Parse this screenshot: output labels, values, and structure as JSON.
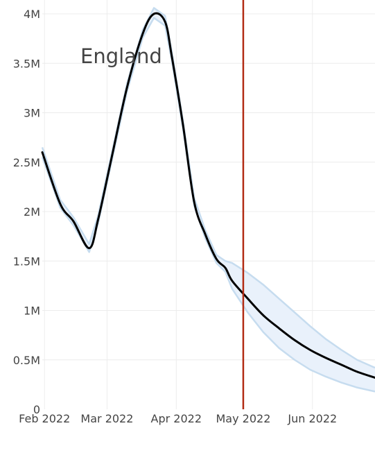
{
  "chart_data": {
    "type": "line",
    "title": "England",
    "xlabel": "",
    "ylabel": "",
    "x": [
      "2022-01-31",
      "2022-02-08",
      "2022-02-14",
      "2022-02-21",
      "2022-02-25",
      "2022-03-03",
      "2022-03-10",
      "2022-03-17",
      "2022-03-22",
      "2022-03-27",
      "2022-03-30",
      "2022-04-04",
      "2022-04-09",
      "2022-04-14",
      "2022-04-19",
      "2022-04-23",
      "2022-04-26",
      "2022-05-03",
      "2022-05-10",
      "2022-05-17",
      "2022-05-24",
      "2022-05-31",
      "2022-06-07",
      "2022-06-14",
      "2022-06-21",
      "2022-06-29"
    ],
    "series": [
      {
        "values": [
          2.6,
          2.08,
          1.9,
          1.63,
          1.92,
          2.54,
          3.26,
          3.8,
          4.0,
          3.92,
          3.57,
          2.88,
          2.1,
          1.77,
          1.52,
          1.43,
          1.3,
          1.12,
          0.95,
          0.82,
          0.7,
          0.6,
          0.52,
          0.45,
          0.38,
          0.32
        ],
        "lower": [
          2.55,
          2.04,
          1.86,
          1.59,
          1.88,
          2.5,
          3.22,
          3.76,
          3.96,
          3.88,
          3.53,
          2.84,
          2.06,
          1.73,
          1.48,
          1.39,
          1.22,
          0.98,
          0.78,
          0.62,
          0.5,
          0.4,
          0.33,
          0.27,
          0.22,
          0.18
        ],
        "upper": [
          2.65,
          2.12,
          1.94,
          1.67,
          1.96,
          2.58,
          3.3,
          3.84,
          4.06,
          3.98,
          3.62,
          2.92,
          2.14,
          1.81,
          1.56,
          1.5,
          1.48,
          1.38,
          1.26,
          1.12,
          0.98,
          0.84,
          0.71,
          0.6,
          0.5,
          0.42
        ]
      }
    ],
    "ylim": [
      0,
      4.0
    ],
    "xlim": [
      "2022-01-31",
      "2022-06-29"
    ],
    "ytick_values": [
      0,
      0.5,
      1,
      1.5,
      2,
      2.5,
      3,
      3.5,
      4
    ],
    "ytick_labels": [
      "0",
      "0.5M",
      "1M",
      "1.5M",
      "2M",
      "2.5M",
      "3M",
      "3.5M",
      "4M"
    ],
    "xtick_values": [
      "2022-02-01",
      "2022-03-01",
      "2022-04-01",
      "2022-05-01",
      "2022-06-01"
    ],
    "xtick_labels": [
      "Feb 2022",
      "Mar 2022",
      "Apr 2022",
      "May 2022",
      "Jun 2022"
    ],
    "vertical_line": {
      "x": "2022-05-01",
      "color": "#b22c14"
    },
    "grid": true,
    "colors": {
      "line": "#000000",
      "band_fill": "#e9f1fb",
      "band_edge": "#c6dcef",
      "grid": "#ececec"
    }
  }
}
